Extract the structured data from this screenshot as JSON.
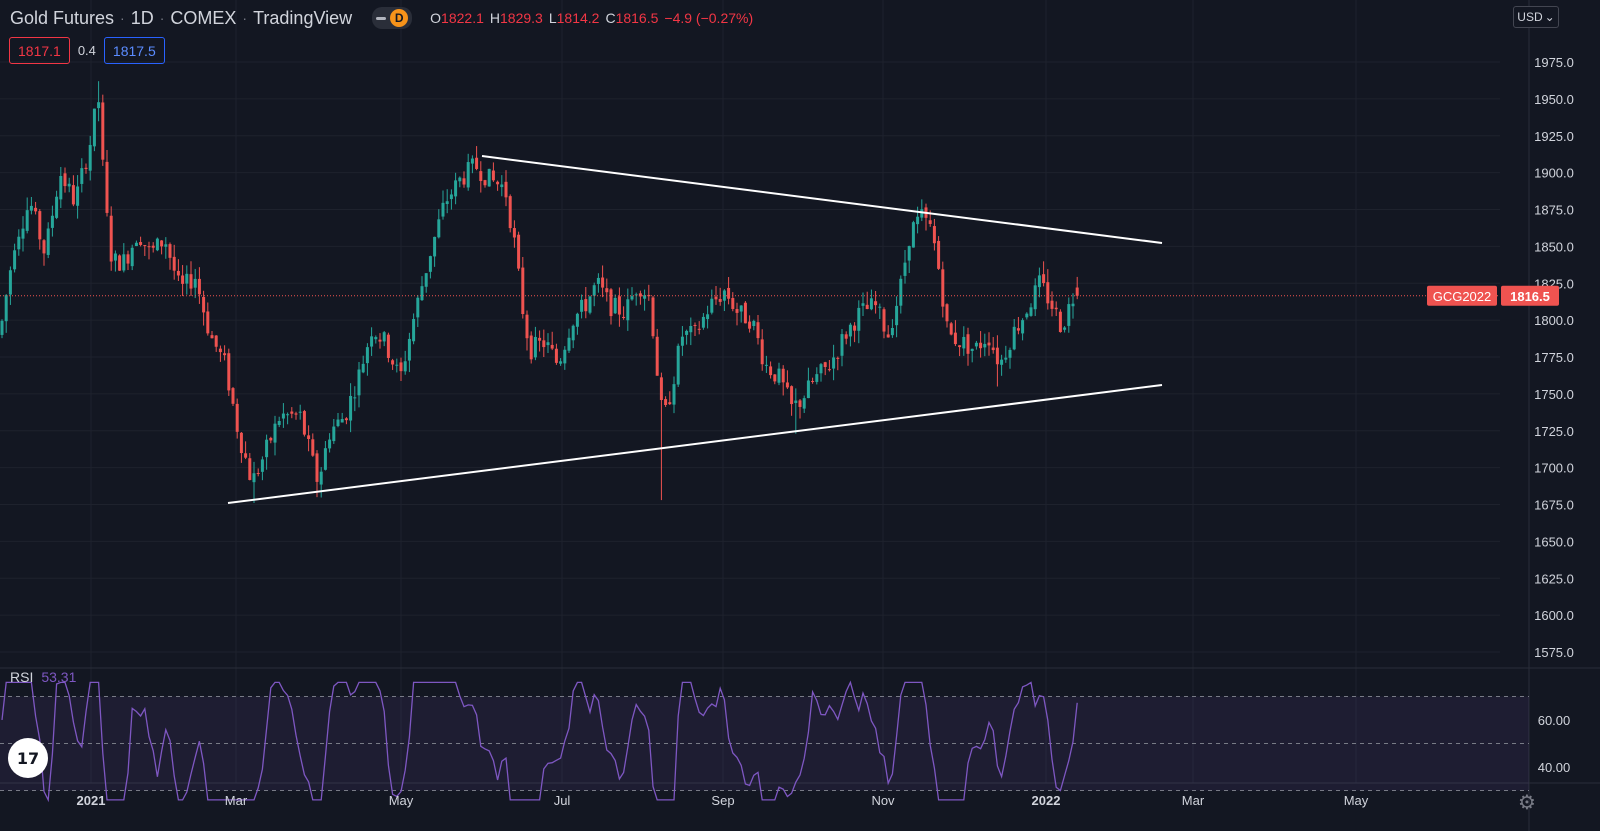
{
  "header": {
    "symbol": "Gold Futures",
    "interval": "1D",
    "exchange": "COMEX",
    "source": "TradingView",
    "sep": "·",
    "d_badge": "D",
    "open_key": "O",
    "open": "1822.1",
    "high_key": "H",
    "high": "1829.3",
    "low_key": "L",
    "low": "1814.2",
    "close_key": "C",
    "close": "1816.5",
    "change": "−4.9 (−0.27%)"
  },
  "quote": {
    "bid": "1817.1",
    "spread": "0.4",
    "ask": "1817.5"
  },
  "currency": "USD",
  "currency_chevron": "⌄",
  "last_price_label": {
    "symbol": "GCG2022",
    "price": "1816.5"
  },
  "rsi": {
    "name": "RSI",
    "value": "53.31"
  },
  "logo_text": "17",
  "colors": {
    "background": "#131722",
    "up": "#26a69a",
    "down": "#ef5350",
    "rsi_line": "#7e57c2",
    "trendline": "#ffffff",
    "accent_red": "#f23645",
    "accent_blue": "#2962ff"
  },
  "chart_data": {
    "type": "candlestick",
    "y_axis_ticks": [
      "1975.0",
      "1950.0",
      "1925.0",
      "1900.0",
      "1875.0",
      "1850.0",
      "1825.0",
      "1800.0",
      "1775.0",
      "1750.0",
      "1725.0",
      "1700.0",
      "1675.0",
      "1650.0",
      "1625.0",
      "1600.0",
      "1575.0"
    ],
    "x_axis_ticks": [
      "2021",
      "Mar",
      "May",
      "Jul",
      "Sep",
      "Nov",
      "2022",
      "Mar",
      "May"
    ],
    "ylim": [
      1562,
      1998
    ],
    "last_price": 1816.5,
    "trendlines": [
      {
        "name": "upper",
        "from": [
          "2021-06-01",
          1911
        ],
        "to": [
          "2022-02-15",
          1852
        ]
      },
      {
        "name": "lower",
        "from": [
          "2021-02-28",
          1674
        ],
        "to": [
          "2022-02-15",
          1755
        ]
      }
    ],
    "rsi_ticks": [
      "60.00",
      "40.00"
    ],
    "rsi_levels": [
      70,
      50,
      30
    ],
    "rsi_ylim": [
      25,
      78
    ]
  }
}
